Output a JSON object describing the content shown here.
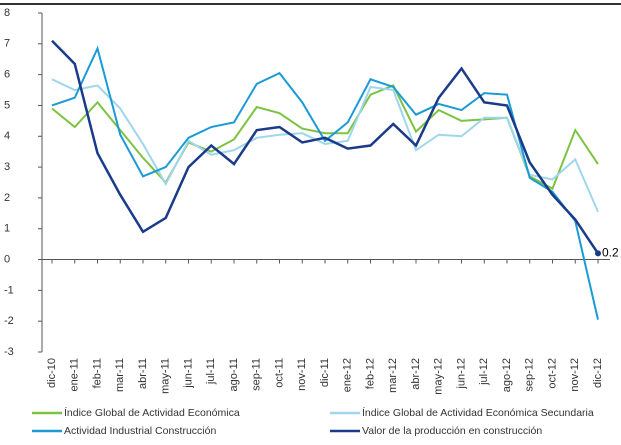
{
  "chart_data": {
    "type": "line",
    "categories": [
      "dic-10",
      "ene-11",
      "feb-11",
      "mar-11",
      "abr-11",
      "may-11",
      "jun-11",
      "jul-11",
      "ago-11",
      "sep-11",
      "oct-11",
      "nov-11",
      "dic-11",
      "ene-12",
      "feb-12",
      "mar-12",
      "abr-12",
      "may-12",
      "jun-12",
      "jul-12",
      "ago-12",
      "sep-12",
      "oct-12",
      "nov-12",
      "dic-12"
    ],
    "series": [
      {
        "name": "Índice Global de Actividad Económica",
        "color": "#7dc242",
        "values": [
          4.9,
          4.3,
          5.1,
          4.2,
          3.3,
          2.5,
          3.8,
          3.5,
          3.9,
          4.95,
          4.75,
          4.25,
          4.1,
          4.1,
          5.35,
          5.65,
          4.15,
          4.85,
          4.5,
          4.55,
          4.6,
          2.7,
          2.3,
          4.2,
          3.1
        ]
      },
      {
        "name": "Índice Global de Actividad Económica Secundaria",
        "color": "#9fd6ee",
        "values": [
          5.85,
          5.5,
          5.65,
          4.9,
          3.75,
          2.45,
          3.85,
          3.4,
          3.55,
          3.95,
          4.05,
          4.1,
          3.75,
          3.85,
          5.6,
          5.5,
          3.55,
          4.05,
          4.0,
          4.6,
          4.6,
          2.75,
          2.6,
          3.25,
          1.55
        ]
      },
      {
        "name": "Actividad Industrial Construcción",
        "color": "#1a9ad6",
        "values": [
          5.0,
          5.25,
          6.85,
          4.05,
          2.7,
          3.0,
          3.95,
          4.3,
          4.45,
          5.7,
          6.05,
          5.1,
          3.85,
          4.45,
          5.85,
          5.6,
          4.7,
          5.05,
          4.85,
          5.4,
          5.35,
          2.65,
          2.2,
          1.25,
          -1.95
        ]
      },
      {
        "name": "Valor de la producción en construcción",
        "color": "#1a3a8a",
        "show_last_label": true,
        "values": [
          7.1,
          6.35,
          3.45,
          2.1,
          0.9,
          1.35,
          3.0,
          3.7,
          3.1,
          4.2,
          4.3,
          3.8,
          3.95,
          3.6,
          3.7,
          4.4,
          3.7,
          5.25,
          6.2,
          5.1,
          5.0,
          3.15,
          2.1,
          1.3,
          0.2
        ]
      }
    ],
    "ylim": [
      -3,
      8
    ],
    "yticks": [
      -3,
      -2,
      -1,
      0,
      1,
      2,
      3,
      4,
      5,
      6,
      7,
      8
    ],
    "grid": false
  }
}
